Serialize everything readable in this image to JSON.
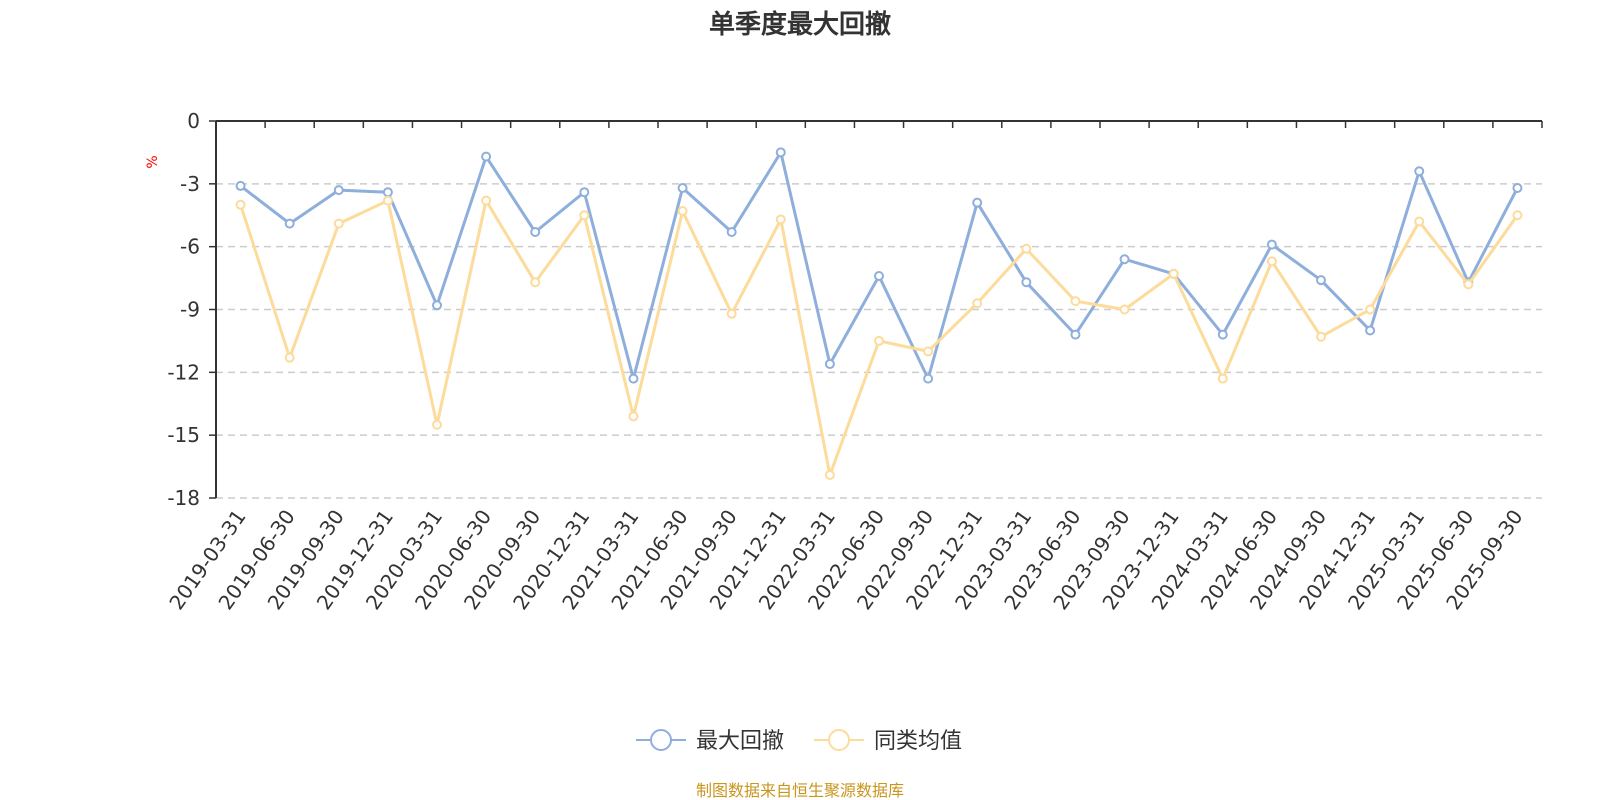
{
  "chart_data": {
    "type": "line",
    "title": "单季度最大回撤",
    "ylabel": "%",
    "ylim": [
      -18,
      0
    ],
    "yticks": [
      0,
      -3,
      -6,
      -9,
      -12,
      -15,
      -18
    ],
    "grid": true,
    "legend_position": "bottom",
    "categories": [
      "2019-03-31",
      "2019-06-30",
      "2019-09-30",
      "2019-12-31",
      "2020-03-31",
      "2020-06-30",
      "2020-09-30",
      "2020-12-31",
      "2021-03-31",
      "2021-06-30",
      "2021-09-30",
      "2021-12-31",
      "2022-03-31",
      "2022-06-30",
      "2022-09-30",
      "2022-12-31",
      "2023-03-31",
      "2023-06-30",
      "2023-09-30",
      "2023-12-31",
      "2024-03-31",
      "2024-06-30",
      "2024-09-30",
      "2024-12-31",
      "2025-03-31",
      "2025-06-30",
      "2025-09-30"
    ],
    "series": [
      {
        "name": "最大回撤",
        "color": "#8eaedc",
        "values": [
          -3.1,
          -4.9,
          -3.3,
          -3.4,
          -8.8,
          -1.7,
          -5.3,
          -3.4,
          -12.3,
          -3.2,
          -5.3,
          -1.5,
          -11.6,
          -7.4,
          -12.3,
          -3.9,
          -7.7,
          -10.2,
          -6.6,
          -7.3,
          -10.2,
          -5.9,
          -7.6,
          -10.0,
          -2.4,
          -7.7,
          -3.2
        ]
      },
      {
        "name": "同类均值",
        "color": "#fcdb9b",
        "values": [
          -4.0,
          -11.3,
          -4.9,
          -3.8,
          -14.5,
          -3.8,
          -7.7,
          -4.5,
          -14.1,
          -4.3,
          -9.2,
          -4.7,
          -16.9,
          -10.5,
          -11.0,
          -8.7,
          -6.1,
          -8.6,
          -9.0,
          -7.3,
          -12.3,
          -6.7,
          -10.3,
          -9.0,
          -4.8,
          -7.8,
          -4.5
        ]
      }
    ],
    "source": "制图数据来自恒生聚源数据库"
  }
}
